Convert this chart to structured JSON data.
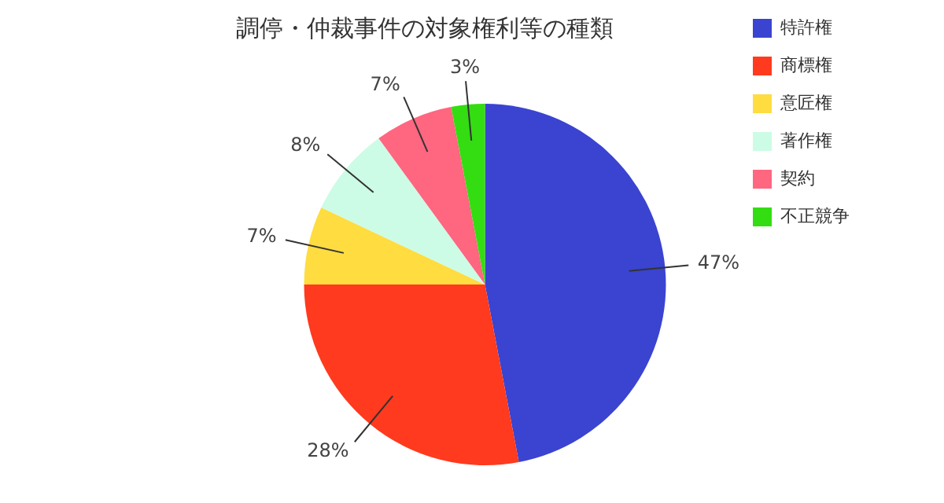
{
  "chart_data": {
    "type": "pie",
    "title": "調停・仲裁事件の対象権利等の種類",
    "categories": [
      "特許権",
      "商標権",
      "意匠権",
      "著作権",
      "契約",
      "不正競争"
    ],
    "values": [
      47,
      28,
      7,
      8,
      7,
      3
    ],
    "value_labels": [
      "47%",
      "28%",
      "7%",
      "8%",
      "7%",
      "3%"
    ],
    "colors": [
      "#3a44d0",
      "#ff3a1e",
      "#ffdc40",
      "#ccfce6",
      "#ff6680",
      "#33dd11"
    ],
    "legend": "right"
  }
}
